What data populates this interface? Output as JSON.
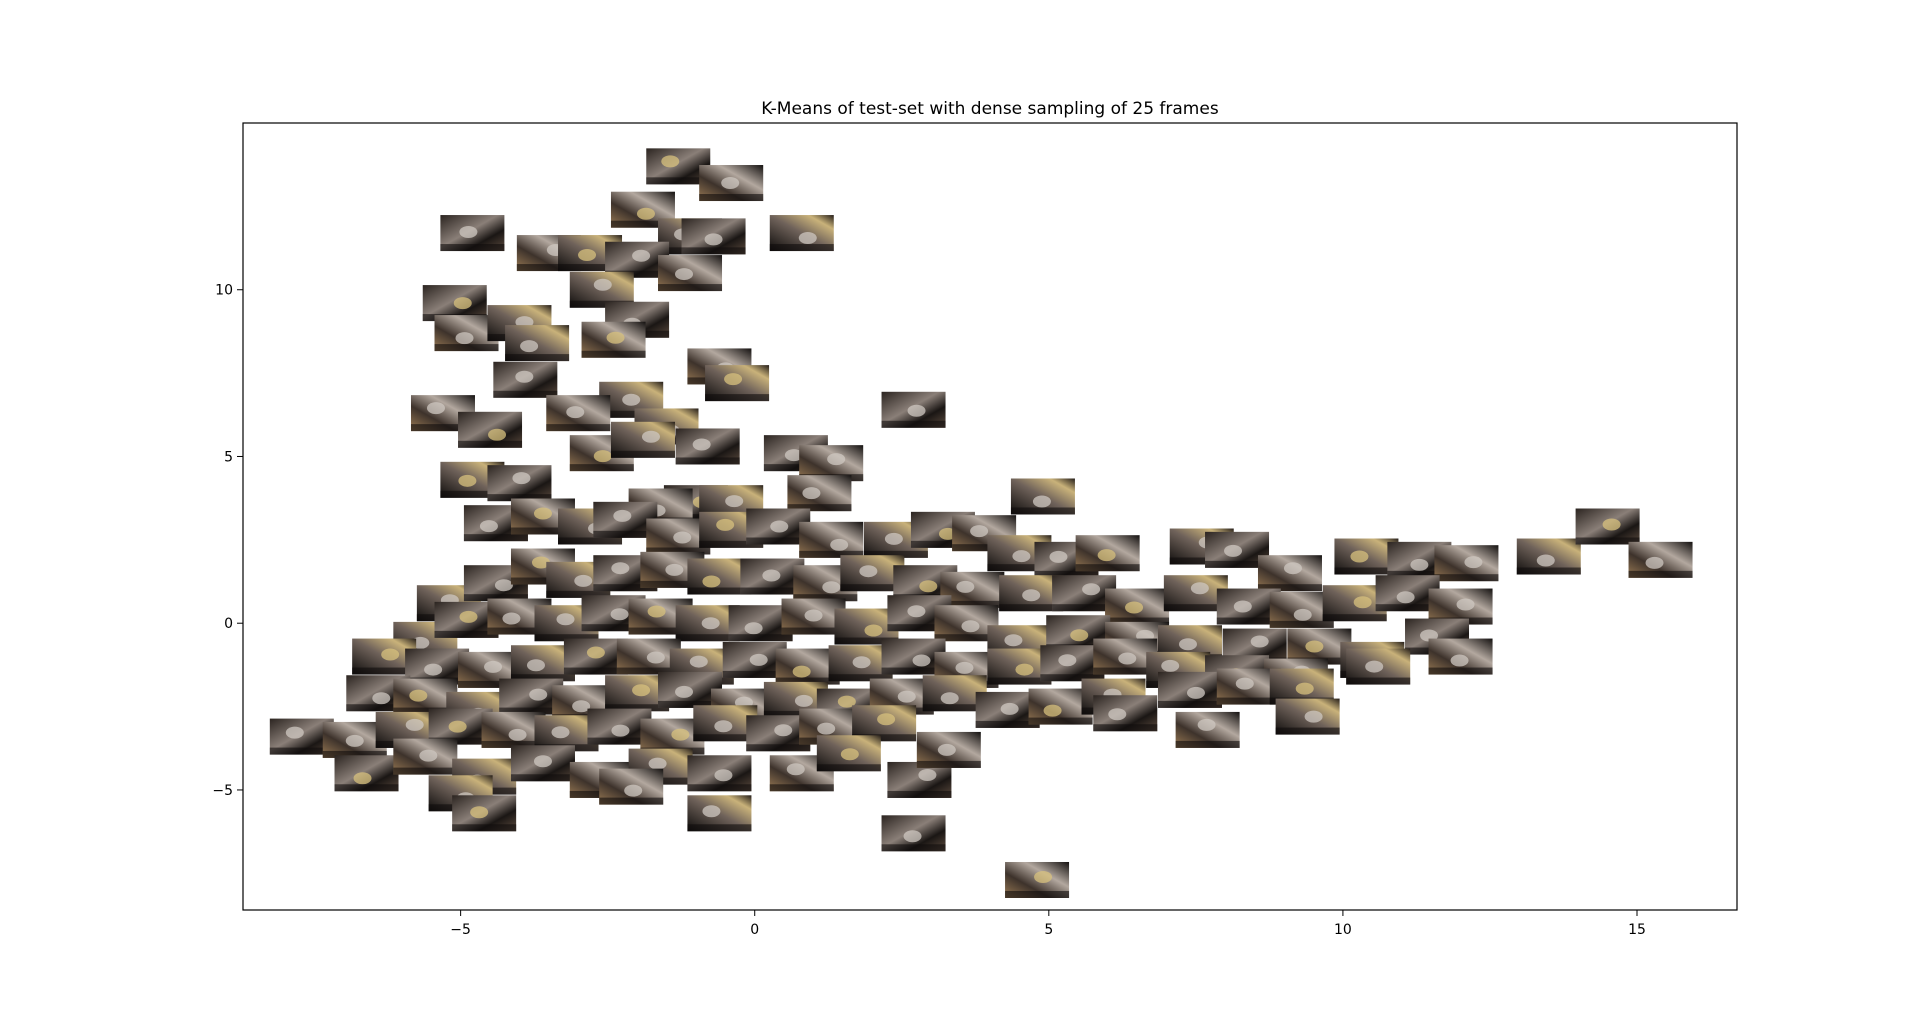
{
  "chart_data": {
    "type": "scatter",
    "marker": "image-thumbnail",
    "title": "K-Means of test-set with dense sampling of 25 frames",
    "xlabel": "",
    "ylabel": "",
    "xlim": [
      -8.7,
      16.7
    ],
    "ylim": [
      -8.6,
      15.0
    ],
    "xticks": [
      -5,
      0,
      5,
      10,
      15
    ],
    "yticks": [
      -5,
      0,
      5,
      10
    ],
    "xtick_labels": [
      "−5",
      "0",
      "5",
      "10",
      "15"
    ],
    "ytick_labels": [
      "−5",
      "0",
      "5",
      "10"
    ],
    "grid": false,
    "points": [
      {
        "x": -1.3,
        "y": 13.7
      },
      {
        "x": -0.4,
        "y": 13.2
      },
      {
        "x": 0.8,
        "y": 11.7
      },
      {
        "x": -4.8,
        "y": 11.7
      },
      {
        "x": -1.9,
        "y": 12.4
      },
      {
        "x": -1.1,
        "y": 11.6
      },
      {
        "x": -0.7,
        "y": 11.6
      },
      {
        "x": -3.5,
        "y": 11.1
      },
      {
        "x": -2.8,
        "y": 11.1
      },
      {
        "x": -2.0,
        "y": 10.9
      },
      {
        "x": -1.1,
        "y": 10.5
      },
      {
        "x": -2.6,
        "y": 10.0
      },
      {
        "x": -5.1,
        "y": 9.6
      },
      {
        "x": -4.9,
        "y": 8.7
      },
      {
        "x": -4.0,
        "y": 9.0
      },
      {
        "x": -2.0,
        "y": 9.1
      },
      {
        "x": -2.4,
        "y": 8.5
      },
      {
        "x": -3.7,
        "y": 8.4
      },
      {
        "x": -3.9,
        "y": 7.3
      },
      {
        "x": -0.6,
        "y": 7.7
      },
      {
        "x": -0.3,
        "y": 7.2
      },
      {
        "x": 2.7,
        "y": 6.4
      },
      {
        "x": -5.3,
        "y": 6.3
      },
      {
        "x": -2.1,
        "y": 6.7
      },
      {
        "x": -4.5,
        "y": 5.8
      },
      {
        "x": -3.0,
        "y": 6.3
      },
      {
        "x": -1.5,
        "y": 5.9
      },
      {
        "x": -0.8,
        "y": 5.3
      },
      {
        "x": -2.6,
        "y": 5.1
      },
      {
        "x": -1.9,
        "y": 5.5
      },
      {
        "x": 0.7,
        "y": 5.1
      },
      {
        "x": 1.3,
        "y": 4.8
      },
      {
        "x": -4.8,
        "y": 4.3
      },
      {
        "x": -4.0,
        "y": 4.2
      },
      {
        "x": 1.1,
        "y": 3.9
      },
      {
        "x": 4.9,
        "y": 3.8
      },
      {
        "x": -1.0,
        "y": 3.6
      },
      {
        "x": -1.6,
        "y": 3.5
      },
      {
        "x": -0.4,
        "y": 3.6
      },
      {
        "x": -4.4,
        "y": 3.0
      },
      {
        "x": -3.6,
        "y": 3.2
      },
      {
        "x": -2.8,
        "y": 2.9
      },
      {
        "x": -2.2,
        "y": 3.1
      },
      {
        "x": -1.3,
        "y": 2.6
      },
      {
        "x": -0.4,
        "y": 2.8
      },
      {
        "x": 0.4,
        "y": 2.9
      },
      {
        "x": 1.3,
        "y": 2.5
      },
      {
        "x": 2.4,
        "y": 2.5
      },
      {
        "x": 3.2,
        "y": 2.8
      },
      {
        "x": 3.9,
        "y": 2.7
      },
      {
        "x": 4.5,
        "y": 2.1
      },
      {
        "x": 5.3,
        "y": 1.9
      },
      {
        "x": 6.0,
        "y": 2.1
      },
      {
        "x": 7.6,
        "y": 2.3
      },
      {
        "x": 8.2,
        "y": 2.2
      },
      {
        "x": 9.1,
        "y": 1.5
      },
      {
        "x": 10.4,
        "y": 2.0
      },
      {
        "x": 11.3,
        "y": 1.9
      },
      {
        "x": 12.1,
        "y": 1.8
      },
      {
        "x": 13.5,
        "y": 2.0
      },
      {
        "x": 14.5,
        "y": 2.9
      },
      {
        "x": 15.4,
        "y": 1.9
      },
      {
        "x": -5.2,
        "y": 0.6
      },
      {
        "x": -4.4,
        "y": 1.2
      },
      {
        "x": -3.6,
        "y": 1.7
      },
      {
        "x": -3.0,
        "y": 1.3
      },
      {
        "x": -2.2,
        "y": 1.5
      },
      {
        "x": -1.4,
        "y": 1.6
      },
      {
        "x": -0.6,
        "y": 1.4
      },
      {
        "x": 0.3,
        "y": 1.4
      },
      {
        "x": 1.2,
        "y": 1.2
      },
      {
        "x": 2.0,
        "y": 1.5
      },
      {
        "x": 2.9,
        "y": 1.2
      },
      {
        "x": 3.7,
        "y": 1.0
      },
      {
        "x": 4.7,
        "y": 0.9
      },
      {
        "x": 5.6,
        "y": 0.9
      },
      {
        "x": 6.5,
        "y": 0.5
      },
      {
        "x": 7.5,
        "y": 0.9
      },
      {
        "x": 8.4,
        "y": 0.5
      },
      {
        "x": 9.3,
        "y": 0.4
      },
      {
        "x": 10.2,
        "y": 0.6
      },
      {
        "x": 11.1,
        "y": 0.9
      },
      {
        "x": 12.0,
        "y": 0.5
      },
      {
        "x": -5.6,
        "y": -0.5
      },
      {
        "x": -4.9,
        "y": 0.1
      },
      {
        "x": -4.0,
        "y": 0.2
      },
      {
        "x": -3.2,
        "y": 0.0
      },
      {
        "x": -2.4,
        "y": 0.3
      },
      {
        "x": -1.6,
        "y": 0.2
      },
      {
        "x": -0.8,
        "y": 0.0
      },
      {
        "x": 0.1,
        "y": 0.0
      },
      {
        "x": 1.0,
        "y": 0.2
      },
      {
        "x": 1.9,
        "y": -0.1
      },
      {
        "x": 2.8,
        "y": 0.3
      },
      {
        "x": 3.6,
        "y": 0.0
      },
      {
        "x": 4.5,
        "y": -0.6
      },
      {
        "x": 5.5,
        "y": -0.3
      },
      {
        "x": 6.5,
        "y": -0.5
      },
      {
        "x": 7.4,
        "y": -0.6
      },
      {
        "x": 8.5,
        "y": -0.7
      },
      {
        "x": 9.6,
        "y": -0.7
      },
      {
        "x": 10.5,
        "y": -1.1
      },
      {
        "x": 11.6,
        "y": -0.4
      },
      {
        "x": 12.0,
        "y": -1.0
      },
      {
        "x": -6.3,
        "y": -1.0
      },
      {
        "x": -5.4,
        "y": -1.3
      },
      {
        "x": -4.5,
        "y": -1.4
      },
      {
        "x": -3.6,
        "y": -1.2
      },
      {
        "x": -2.7,
        "y": -1.0
      },
      {
        "x": -1.8,
        "y": -1.0
      },
      {
        "x": -0.9,
        "y": -1.3
      },
      {
        "x": 0.0,
        "y": -1.1
      },
      {
        "x": 0.9,
        "y": -1.3
      },
      {
        "x": 1.8,
        "y": -1.2
      },
      {
        "x": 2.7,
        "y": -1.0
      },
      {
        "x": 3.6,
        "y": -1.4
      },
      {
        "x": 4.5,
        "y": -1.3
      },
      {
        "x": 5.4,
        "y": -1.2
      },
      {
        "x": 6.3,
        "y": -1.0
      },
      {
        "x": 7.2,
        "y": -1.4
      },
      {
        "x": 8.2,
        "y": -1.5
      },
      {
        "x": 9.2,
        "y": -1.6
      },
      {
        "x": 10.6,
        "y": -1.3
      },
      {
        "x": -6.4,
        "y": -2.1
      },
      {
        "x": -5.6,
        "y": -2.2
      },
      {
        "x": -4.7,
        "y": -2.6
      },
      {
        "x": -3.8,
        "y": -2.2
      },
      {
        "x": -2.9,
        "y": -2.4
      },
      {
        "x": -2.0,
        "y": -2.1
      },
      {
        "x": -1.1,
        "y": -2.0
      },
      {
        "x": -0.2,
        "y": -2.5
      },
      {
        "x": 0.7,
        "y": -2.3
      },
      {
        "x": 1.6,
        "y": -2.5
      },
      {
        "x": 2.5,
        "y": -2.2
      },
      {
        "x": 3.4,
        "y": -2.1
      },
      {
        "x": 4.3,
        "y": -2.6
      },
      {
        "x": 5.2,
        "y": -2.5
      },
      {
        "x": 6.1,
        "y": -2.2
      },
      {
        "x": 7.4,
        "y": -2.0
      },
      {
        "x": 8.4,
        "y": -1.9
      },
      {
        "x": 9.3,
        "y": -1.9
      },
      {
        "x": -7.7,
        "y": -3.4
      },
      {
        "x": -6.8,
        "y": -3.5
      },
      {
        "x": -5.9,
        "y": -3.2
      },
      {
        "x": -5.0,
        "y": -3.1
      },
      {
        "x": -4.1,
        "y": -3.2
      },
      {
        "x": -3.2,
        "y": -3.3
      },
      {
        "x": -2.3,
        "y": -3.1
      },
      {
        "x": -1.4,
        "y": -3.4
      },
      {
        "x": -0.5,
        "y": -3.0
      },
      {
        "x": 0.4,
        "y": -3.3
      },
      {
        "x": 1.3,
        "y": -3.1
      },
      {
        "x": 2.2,
        "y": -3.0
      },
      {
        "x": 6.3,
        "y": -2.7
      },
      {
        "x": 7.7,
        "y": -3.2
      },
      {
        "x": 9.4,
        "y": -2.8
      },
      {
        "x": -6.6,
        "y": -4.5
      },
      {
        "x": -5.6,
        "y": -4.0
      },
      {
        "x": -4.6,
        "y": -4.6
      },
      {
        "x": -3.6,
        "y": -4.2
      },
      {
        "x": -2.6,
        "y": -4.7
      },
      {
        "x": -1.6,
        "y": -4.3
      },
      {
        "x": -0.6,
        "y": -4.5
      },
      {
        "x": 0.8,
        "y": -4.5
      },
      {
        "x": 1.6,
        "y": -3.9
      },
      {
        "x": 2.8,
        "y": -4.7
      },
      {
        "x": 3.3,
        "y": -3.8
      },
      {
        "x": -5.0,
        "y": -5.1
      },
      {
        "x": -4.6,
        "y": -5.7
      },
      {
        "x": -2.1,
        "y": -4.9
      },
      {
        "x": -0.6,
        "y": -5.7
      },
      {
        "x": 2.7,
        "y": -6.3
      },
      {
        "x": 4.8,
        "y": -7.7
      }
    ]
  }
}
